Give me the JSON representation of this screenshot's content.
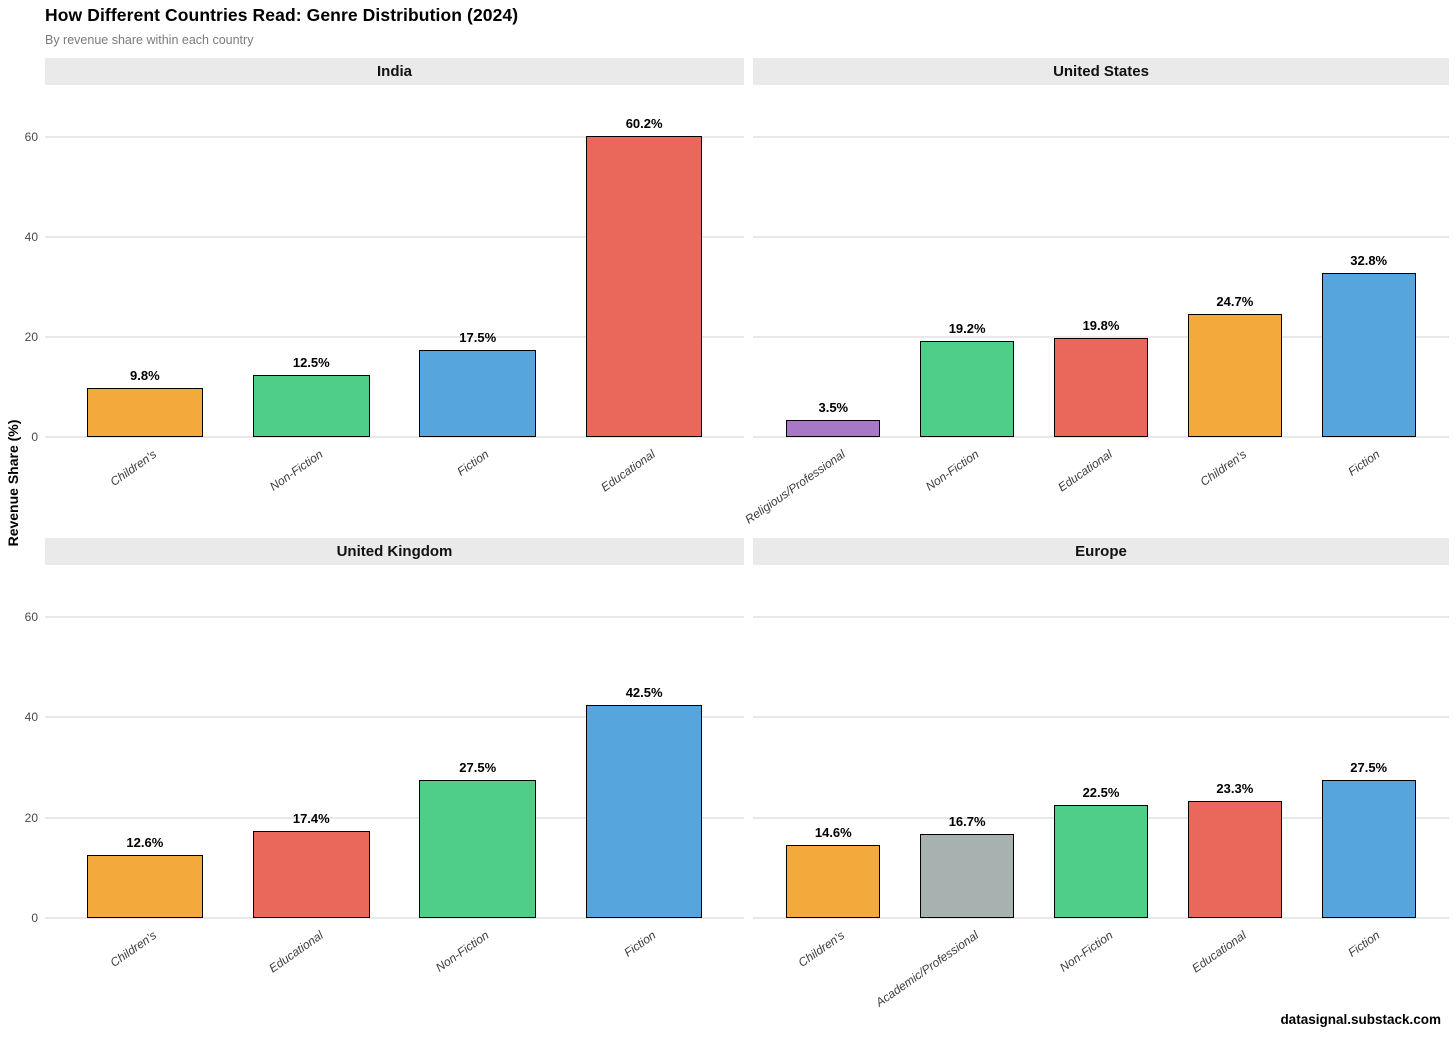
{
  "header": {
    "title": "How Different Countries Read: Genre Distribution (2024)",
    "subtitle": "By revenue share within each country"
  },
  "footer": {
    "source": "datasignal.substack.com"
  },
  "colors": {
    "childrens": "#F4A93C",
    "non_fiction": "#4FCE87",
    "fiction": "#56A5DC",
    "educational": "#EA675C",
    "religious_professional": "#A878C6",
    "academic_professional": "#A6B1B0",
    "strip_bg": "#EAEAEA",
    "gridline": "#E8E8E8",
    "axis_text": "#4A4A4A",
    "bar_outline": "#000000"
  },
  "chart_data": {
    "type": "bar",
    "title": "How Different Countries Read: Genre Distribution (2024)",
    "subtitle": "By revenue share within each country",
    "ylabel": "Revenue Share (%)",
    "xlabel": "",
    "yticks": [
      0,
      20,
      40,
      60
    ],
    "ylim": [
      0,
      70.4
    ],
    "grid": "horizontal-major-only",
    "legend_position": "none",
    "facet_layout": "2x2",
    "bar_value_suffix": "%",
    "facets": [
      {
        "name": "India",
        "show_y_axis": true,
        "categories": [
          "Children's",
          "Non-Fiction",
          "Fiction",
          "Educational"
        ],
        "values": [
          9.8,
          12.5,
          17.5,
          60.2
        ],
        "labels": [
          "9.8%",
          "12.5%",
          "17.5%",
          "60.2%"
        ],
        "colors": [
          "#F4A93C",
          "#4FCE87",
          "#56A5DC",
          "#EA675C"
        ]
      },
      {
        "name": "United States",
        "show_y_axis": false,
        "categories": [
          "Religious/Professional",
          "Non-Fiction",
          "Educational",
          "Children's",
          "Fiction"
        ],
        "values": [
          3.5,
          19.2,
          19.8,
          24.7,
          32.8
        ],
        "labels": [
          "3.5%",
          "19.2%",
          "19.8%",
          "24.7%",
          "32.8%"
        ],
        "colors": [
          "#A878C6",
          "#4FCE87",
          "#EA675C",
          "#F4A93C",
          "#56A5DC"
        ]
      },
      {
        "name": "United Kingdom",
        "show_y_axis": true,
        "categories": [
          "Children's",
          "Educational",
          "Non-Fiction",
          "Fiction"
        ],
        "values": [
          12.6,
          17.4,
          27.5,
          42.5
        ],
        "labels": [
          "12.6%",
          "17.4%",
          "27.5%",
          "42.5%"
        ],
        "colors": [
          "#F4A93C",
          "#EA675C",
          "#4FCE87",
          "#56A5DC"
        ]
      },
      {
        "name": "Europe",
        "show_y_axis": false,
        "categories": [
          "Children's",
          "Academic/Professional",
          "Non-Fiction",
          "Educational",
          "Fiction"
        ],
        "values": [
          14.6,
          16.7,
          22.5,
          23.3,
          27.5
        ],
        "labels": [
          "14.6%",
          "16.7%",
          "22.5%",
          "23.3%",
          "27.5%"
        ],
        "colors": [
          "#F4A93C",
          "#A6B1B0",
          "#4FCE87",
          "#EA675C",
          "#56A5DC"
        ]
      }
    ]
  }
}
